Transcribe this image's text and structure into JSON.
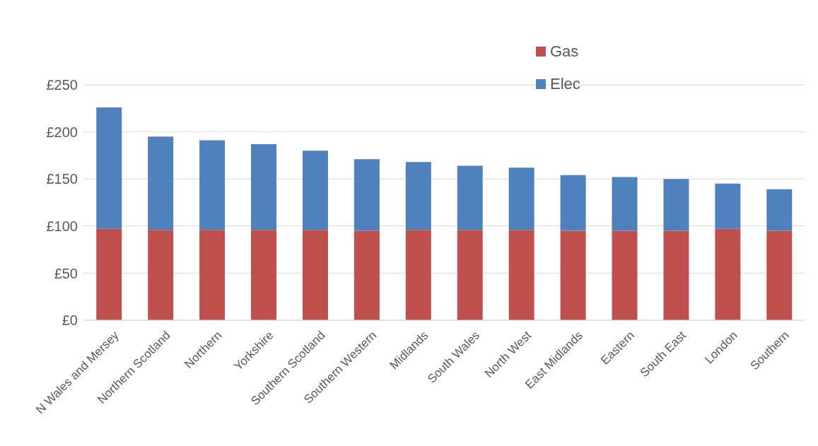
{
  "chart_data": {
    "type": "bar",
    "stacked": true,
    "categories": [
      "N Wales and Mersey",
      "Northern Scotland",
      "Northern",
      "Yorkshire",
      "Southern Scotland",
      "Southern Western",
      "Midlands",
      "South Wales",
      "North West",
      "East Midlands",
      "Eastern",
      "South East",
      "London",
      "Southern"
    ],
    "series": [
      {
        "name": "Gas",
        "color": "#c0504d",
        "values": [
          97,
          96,
          96,
          96,
          96,
          95,
          96,
          96,
          96,
          95,
          95,
          95,
          97,
          95
        ]
      },
      {
        "name": "Elec",
        "color": "#4f81bd",
        "values": [
          129,
          99,
          95,
          91,
          84,
          76,
          72,
          68,
          66,
          59,
          57,
          55,
          48,
          44
        ]
      }
    ],
    "ylim": [
      0,
      250
    ],
    "yticks": [
      {
        "value": 0,
        "label": "£0"
      },
      {
        "value": 50,
        "label": "£50"
      },
      {
        "value": 100,
        "label": "£100"
      },
      {
        "value": 150,
        "label": "£150"
      },
      {
        "value": 200,
        "label": "£200"
      },
      {
        "value": 250,
        "label": "£250"
      }
    ],
    "grid": "y",
    "legend": "top"
  }
}
